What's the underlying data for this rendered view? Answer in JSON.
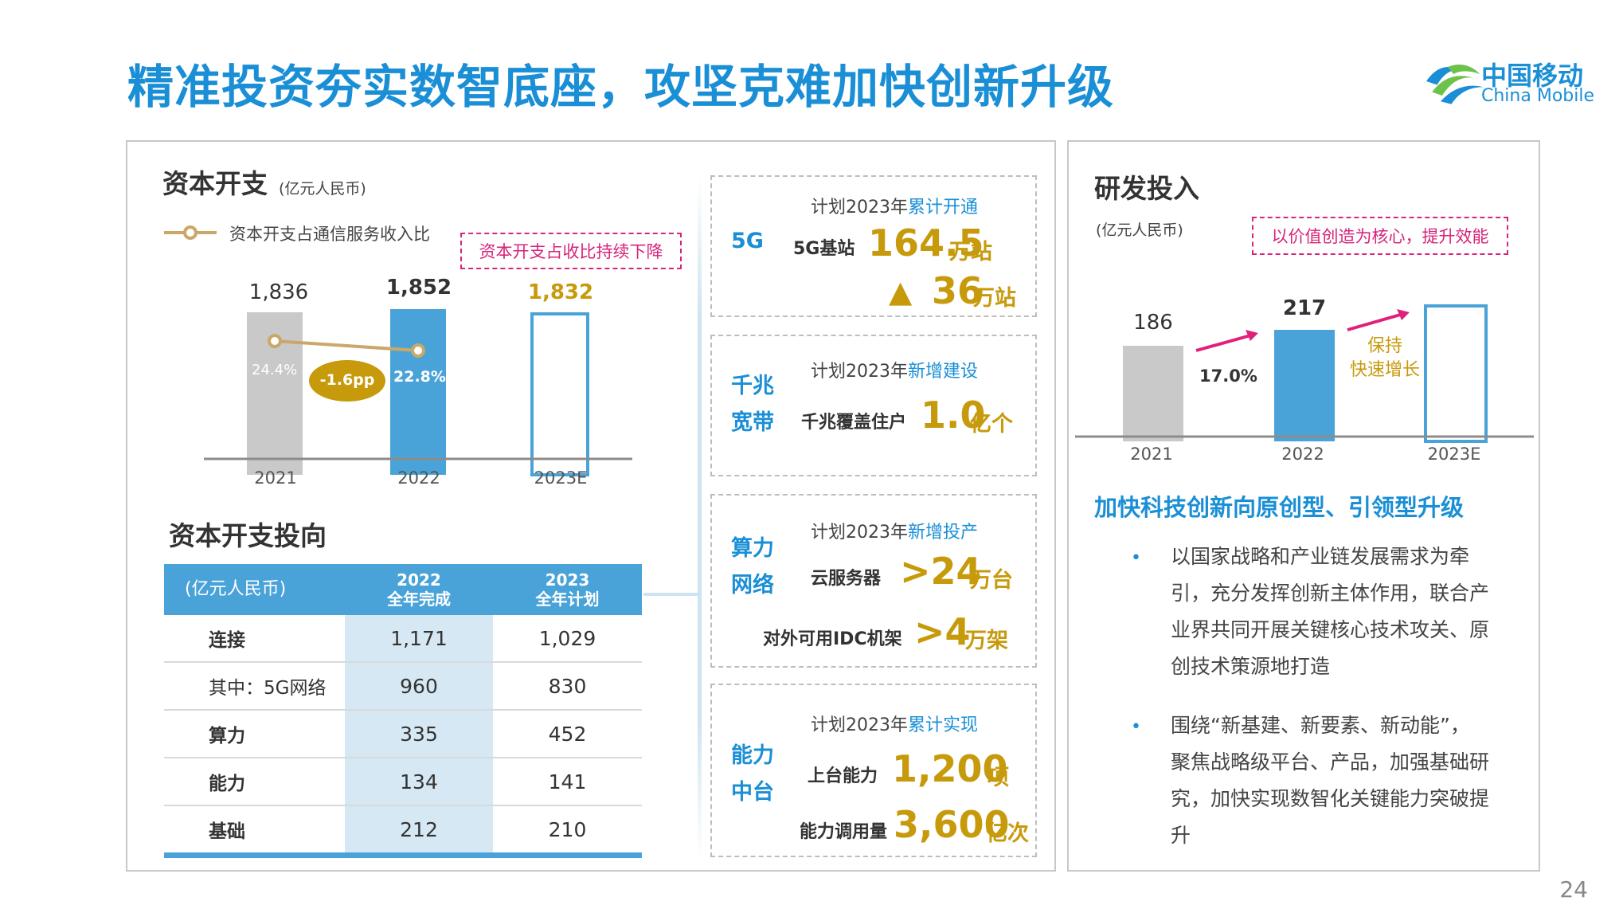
{
  "title": "精准投资夯实数智底座，攻坚克难加快创新升级",
  "logo": {
    "cn": "中国移动",
    "en": "China Mobile"
  },
  "capex": {
    "heading": "资本开支",
    "unit": "(亿元人民币)",
    "legend": "资本开支占通信服务收入比",
    "callout": "资本开支占收比持续下降",
    "chart_data": {
      "type": "bar",
      "categories": [
        "2021",
        "2022",
        "2023E"
      ],
      "values": [
        1836,
        1852,
        1832
      ],
      "value_labels": [
        "1,836",
        "1,852",
        "1,832"
      ],
      "ratio_series": {
        "name": "资本开支占通信服务收入比",
        "values": [
          24.4,
          22.8
        ],
        "labels": [
          "24.4%",
          "22.8%"
        ]
      },
      "change_label": "-1.6pp",
      "colors": {
        "2021": "#c9c9c9",
        "2022": "#4aa3d8",
        "2023E": "outline-#4aa3d8",
        "ratio_line": "#c9a86a",
        "change_badge": "#c79a0c"
      }
    }
  },
  "direction": {
    "heading": "资本开支投向",
    "table": {
      "headers": [
        "(亿元人民币)",
        "2022\n全年完成",
        "2023\n全年计划"
      ],
      "rows": [
        {
          "label": "连接",
          "v2022": "1,171",
          "v2023": "1,029"
        },
        {
          "label": "其中：5G网络",
          "v2022": "960",
          "v2023": "830"
        },
        {
          "label": "算力",
          "v2022": "335",
          "v2023": "452"
        },
        {
          "label": "能力",
          "v2022": "134",
          "v2023": "141"
        },
        {
          "label": "基础",
          "v2022": "212",
          "v2023": "210"
        }
      ]
    }
  },
  "cards": [
    {
      "plan_prefix": "计划2023年",
      "plan_accent": "累计开通",
      "cat": "5G",
      "item": "5G基站",
      "value": "164.5",
      "unit": "万站",
      "item2": "▲",
      "value2": "36",
      "unit2": "万站"
    },
    {
      "plan_prefix": "计划2023年",
      "plan_accent": "新增建设",
      "cat": "千兆\n宽带",
      "item": "千兆覆盖住户",
      "value": "1.0",
      "unit": "亿个"
    },
    {
      "plan_prefix": "计划2023年",
      "plan_accent": "新增投产",
      "cat": "算力\n网络",
      "item": "云服务器",
      "value": ">24",
      "unit": "万台",
      "item2": "对外可用IDC机架",
      "value2": ">4",
      "unit2": "万架"
    },
    {
      "plan_prefix": "计划2023年",
      "plan_accent": "累计实现",
      "cat": "能力\n中台",
      "item": "上台能力",
      "value": "1,200",
      "unit": "项",
      "item2": "能力调用量",
      "value2": "3,600",
      "unit2": "亿次"
    }
  ],
  "rd": {
    "heading": "研发投入",
    "unit": "(亿元人民币)",
    "callout": "以价值创造为核心，提升效能",
    "chart_data": {
      "type": "bar",
      "categories": [
        "2021",
        "2022",
        "2023E"
      ],
      "values": [
        186,
        217,
        null
      ],
      "value_labels": [
        "186",
        "217",
        ""
      ],
      "growth_label": "17.0%",
      "forecast_label": "保持\n快速增长",
      "colors": {
        "2021": "#c9c9c9",
        "2022": "#4aa3d8",
        "2023E": "outline-#4aa3d8",
        "arrow": "#e0217a"
      }
    },
    "sub_heading": "加快科技创新向原创型、引领型升级",
    "bullets": [
      "以国家战略和产业链发展需求为牵引，充分发挥创新主体作用，联合产业界共同开展关键核心技术攻关、原创技术策源地打造",
      "围绕“新基建、新要素、新动能”，聚焦战略级平台、产品，加强基础研究，加快实现数智化关键能力突破提升"
    ]
  },
  "page_number": "24"
}
